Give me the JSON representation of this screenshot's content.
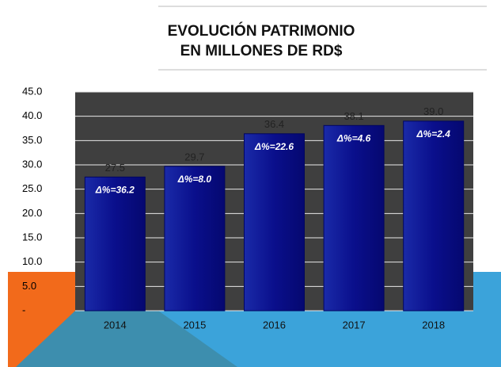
{
  "chart_data": {
    "type": "bar",
    "title": [
      "EVOLUCIÓN PATRIMONIO",
      "EN MILLONES DE RD$"
    ],
    "categories": [
      "2014",
      "2015",
      "2016",
      "2017",
      "2018"
    ],
    "values": [
      27.5,
      29.7,
      36.4,
      38.1,
      39.0
    ],
    "value_labels": [
      "27.5",
      "29.7",
      "36.4",
      "38.1",
      "39.0"
    ],
    "annotations": [
      "Δ%=36.2",
      "Δ%=8.0",
      "Δ%=22.6",
      "Δ%=4.6",
      "Δ%=2.4"
    ],
    "color": "#0a0f8c",
    "ylim": [
      0,
      45
    ],
    "yticks": [
      {
        "value": 0,
        "label": "-"
      },
      {
        "value": 5,
        "label": "5.0"
      },
      {
        "value": 10,
        "label": "10.0"
      },
      {
        "value": 15,
        "label": "15.0"
      },
      {
        "value": 20,
        "label": "20.0"
      },
      {
        "value": 25,
        "label": "25.0"
      },
      {
        "value": 30,
        "label": "30.0"
      },
      {
        "value": 35,
        "label": "35.0"
      },
      {
        "value": 40,
        "label": "40.0"
      },
      {
        "value": 45,
        "label": "45.0"
      }
    ],
    "grid": true
  }
}
